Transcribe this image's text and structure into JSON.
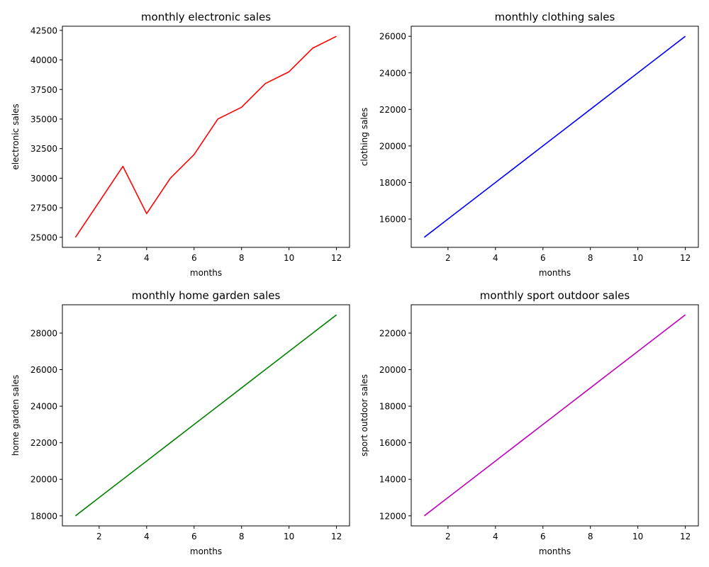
{
  "chart_data": [
    {
      "type": "line",
      "title": "monthly electronic sales",
      "xlabel": "months",
      "ylabel": "electronic sales",
      "x": [
        1,
        2,
        3,
        4,
        5,
        6,
        7,
        8,
        9,
        10,
        11,
        12
      ],
      "series": [
        {
          "values": [
            25000,
            28000,
            31000,
            27000,
            30000,
            32000,
            35000,
            36000,
            38000,
            39000,
            41000,
            42000
          ],
          "color": "#ff0000"
        }
      ],
      "xticks": [
        2,
        4,
        6,
        8,
        10,
        12
      ],
      "yticks": [
        25000,
        27500,
        30000,
        32500,
        35000,
        37500,
        40000,
        42500
      ],
      "xlim": [
        0.45,
        12.55
      ],
      "ylim": [
        24150,
        42850
      ],
      "grid": false
    },
    {
      "type": "line",
      "title": "monthly clothing sales",
      "xlabel": "months",
      "ylabel": "clothing sales",
      "x": [
        1,
        2,
        3,
        4,
        5,
        6,
        7,
        8,
        9,
        10,
        11,
        12
      ],
      "series": [
        {
          "values": [
            15000,
            16000,
            17000,
            18000,
            19000,
            20000,
            21000,
            22000,
            23000,
            24000,
            25000,
            26000
          ],
          "color": "#0000ff"
        }
      ],
      "xticks": [
        2,
        4,
        6,
        8,
        10,
        12
      ],
      "yticks": [
        16000,
        18000,
        20000,
        22000,
        24000,
        26000
      ],
      "xlim": [
        0.45,
        12.55
      ],
      "ylim": [
        14450,
        26550
      ],
      "grid": false
    },
    {
      "type": "line",
      "title": "monthly home garden sales",
      "xlabel": "months",
      "ylabel": "home garden sales",
      "x": [
        1,
        2,
        3,
        4,
        5,
        6,
        7,
        8,
        9,
        10,
        11,
        12
      ],
      "series": [
        {
          "values": [
            18000,
            19000,
            20000,
            21000,
            22000,
            23000,
            24000,
            25000,
            26000,
            27000,
            28000,
            29000
          ],
          "color": "#008000"
        }
      ],
      "xticks": [
        2,
        4,
        6,
        8,
        10,
        12
      ],
      "yticks": [
        18000,
        20000,
        22000,
        24000,
        26000,
        28000
      ],
      "xlim": [
        0.45,
        12.55
      ],
      "ylim": [
        17450,
        29550
      ],
      "grid": false
    },
    {
      "type": "line",
      "title": "monthly sport outdoor sales",
      "xlabel": "months",
      "ylabel": "sport outdoor sales",
      "x": [
        1,
        2,
        3,
        4,
        5,
        6,
        7,
        8,
        9,
        10,
        11,
        12
      ],
      "series": [
        {
          "values": [
            12000,
            13000,
            14000,
            15000,
            16000,
            17000,
            18000,
            19000,
            20000,
            21000,
            22000,
            23000
          ],
          "color": "#bf00bf"
        }
      ],
      "xticks": [
        2,
        4,
        6,
        8,
        10,
        12
      ],
      "yticks": [
        12000,
        14000,
        16000,
        18000,
        20000,
        22000
      ],
      "xlim": [
        0.45,
        12.55
      ],
      "ylim": [
        11450,
        23550
      ],
      "grid": false
    }
  ]
}
